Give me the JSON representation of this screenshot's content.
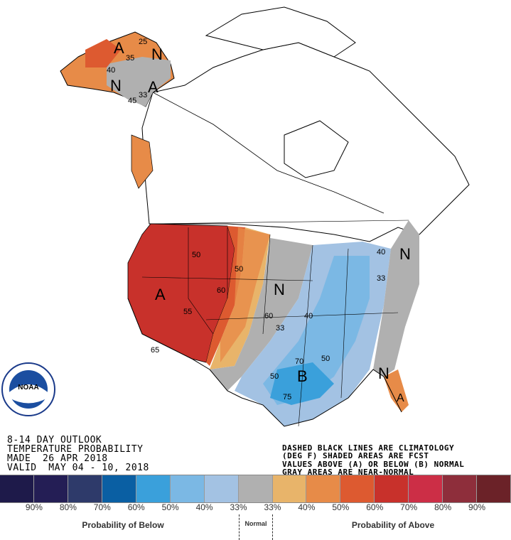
{
  "title_block": {
    "line1": "8-14 DAY OUTLOOK",
    "line2": "TEMPERATURE PROBABILITY",
    "line3": "MADE  26 APR 2018",
    "line4": "VALID  MAY 04 - 10, 2018"
  },
  "notes": {
    "line1": "DASHED BLACK LINES ARE CLIMATOLOGY",
    "line2": "(DEG F) SHADED AREAS ARE FCST",
    "line3": "VALUES ABOVE (A) OR BELOW (B) NORMAL",
    "line4": "GRAY AREAS ARE NEAR-NORMAL"
  },
  "logo": {
    "text": "NOAA",
    "ring_text": "NATIONAL OCEANIC AND ATMOSPHERIC ADMINISTRATION - U.S. DEPARTMENT OF COMMERCE"
  },
  "legend": {
    "colors": [
      "#1e1a4a",
      "#241e55",
      "#2e3a6a",
      "#0a5fa3",
      "#3aa0db",
      "#7bb8e4",
      "#a3c2e3",
      "#b0b0b0",
      "#e8b46a",
      "#e78b48",
      "#dd5a30",
      "#c8312b",
      "#cc2e46",
      "#8e2e3b",
      "#6b2228"
    ],
    "ticks": [
      "90%",
      "80%",
      "70%",
      "60%",
      "50%",
      "40%",
      "33%",
      "33%",
      "40%",
      "50%",
      "60%",
      "70%",
      "80%",
      "90%"
    ],
    "below_label": "Probability of Below",
    "normal_label": "Normal",
    "above_label": "Probability of Above"
  },
  "map_labels": {
    "a_west": "A",
    "n_central": "N",
    "b_south": "B",
    "n_east": "N",
    "n_ne": "N",
    "a_fl": "A",
    "a_ak1": "A",
    "n_ak": "N",
    "a_ak2": "A",
    "n_ak2": "N",
    "c50a": "50",
    "c50b": "50",
    "c60a": "60",
    "c60b": "60",
    "c55": "55",
    "c33a": "33",
    "c33b": "33",
    "c40a": "40",
    "c40b": "40",
    "c65": "65",
    "c50c": "50",
    "c50d": "50",
    "c70": "70",
    "c75": "75",
    "c35": "35",
    "c33ak": "33",
    "c45": "45",
    "c40ak": "40",
    "c25": "25"
  }
}
